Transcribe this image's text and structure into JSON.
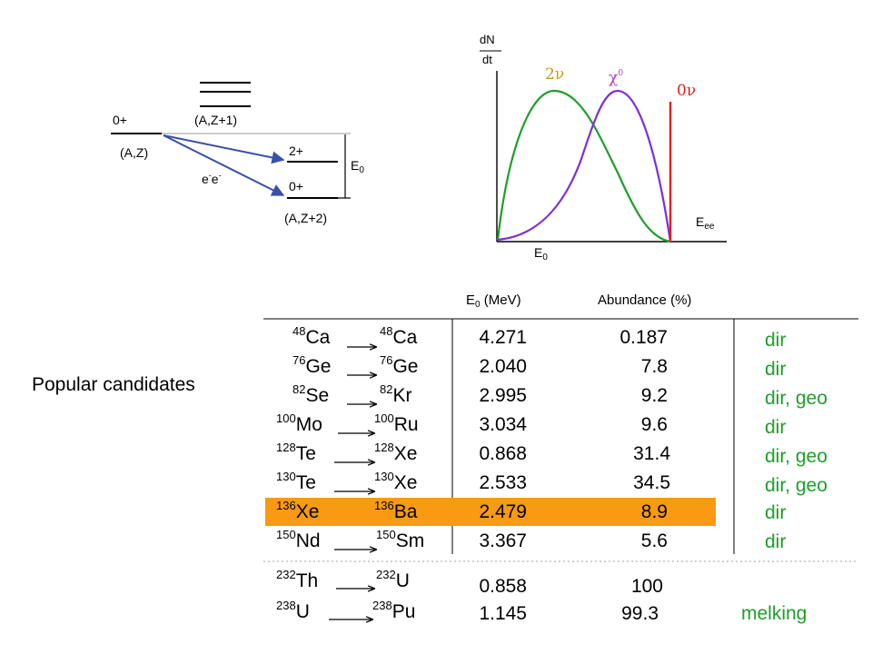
{
  "level_diagram": {
    "parent_spin": "0+",
    "parent_label": "(A,Z)",
    "intermediate_label": "(A,Z+1)",
    "excited_spin": "2+",
    "ground_spin": "0+",
    "daughter_label": "(A,Z+2)",
    "decay_label_base": "e",
    "decay_label_sup": "-",
    "q_value_base": "E",
    "q_value_sub": "0"
  },
  "spectrum": {
    "y_axis_top": "dN",
    "y_axis_bottom": "dt",
    "x_axis_base": "E",
    "x_axis_sub": "ee",
    "endpoint_base": "E",
    "endpoint_sub": "0",
    "curve_2nu": "2ν",
    "curve_majoron_base": "χ",
    "curve_majoron_sup": "0",
    "curve_0nu": "0ν",
    "colors": {
      "two_nu": "#1f9e2a",
      "majoron": "#7a2fe0",
      "zero_nu": "#e0201a"
    }
  },
  "table": {
    "header_e0_base": "E",
    "header_e0_sub": "0",
    "header_e0_unit": " (MeV)",
    "header_abundance": "Abundance (%)",
    "side_label": "Popular candidates",
    "highlight_color": "#f99a12",
    "rows": [
      {
        "from_mass": "48",
        "from_el": "Ca",
        "to_mass": "48",
        "to_el": "Ca",
        "e0": "4.271",
        "abundance": "0.187",
        "note": "dir"
      },
      {
        "from_mass": "76",
        "from_el": "Ge",
        "to_mass": "76",
        "to_el": "Ge",
        "e0": "2.040",
        "abundance": "7.8",
        "note": "dir"
      },
      {
        "from_mass": "82",
        "from_el": "Se",
        "to_mass": "82",
        "to_el": "Kr",
        "e0": "2.995",
        "abundance": "9.2",
        "note": "dir, geo"
      },
      {
        "from_mass": "100",
        "from_el": "Mo",
        "to_mass": "100",
        "to_el": "Ru",
        "e0": "3.034",
        "abundance": "9.6",
        "note": "dir"
      },
      {
        "from_mass": "128",
        "from_el": "Te",
        "to_mass": "128",
        "to_el": "Xe",
        "e0": "0.868",
        "abundance": "31.4",
        "note": "dir, geo"
      },
      {
        "from_mass": "130",
        "from_el": "Te",
        "to_mass": "130",
        "to_el": "Xe",
        "e0": "2.533",
        "abundance": "34.5",
        "note": "dir, geo"
      },
      {
        "from_mass": "136",
        "from_el": "Xe",
        "to_mass": "136",
        "to_el": "Ba",
        "e0": "2.479",
        "abundance": "8.9",
        "note": "dir"
      },
      {
        "from_mass": "150",
        "from_el": "Nd",
        "to_mass": "150",
        "to_el": "Sm",
        "e0": "3.367",
        "abundance": "5.6",
        "note": "dir"
      }
    ],
    "extra_rows": [
      {
        "from_mass": "232",
        "from_el": "Th",
        "to_mass": "232",
        "to_el": "U",
        "e0": "0.858",
        "abundance": "100",
        "note": ""
      },
      {
        "from_mass": "238",
        "from_el": "U",
        "to_mass": "238",
        "to_el": "Pu",
        "e0": "1.145",
        "abundance": "99.3",
        "note": "melking"
      }
    ]
  }
}
